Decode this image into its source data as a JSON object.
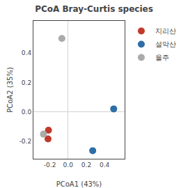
{
  "chart_data": {
    "type": "scatter",
    "title": "PCoA Bray-Curtis species",
    "xlabel": "PCoA1 (43%)",
    "ylabel": "PCoA2 (35%)",
    "xlim": [
      -0.38,
      0.62
    ],
    "ylim": [
      -0.32,
      0.62
    ],
    "xticks": [
      -0.2,
      {
        "value": 0.0,
        "label": "0.0"
      },
      0.2,
      0.4
    ],
    "yticks": [
      -0.2,
      {
        "value": 0.0,
        "label": "0.0"
      },
      0.2,
      0.4
    ],
    "grid": false,
    "legend": "right",
    "series": [
      {
        "name": "지리산",
        "color": "#C0392B",
        "x": [
          -0.215,
          -0.22
        ],
        "values": [
          -0.125,
          -0.185
        ]
      },
      {
        "name": "설악산",
        "color": "#2E6EA6",
        "x": [
          0.5,
          0.27
        ],
        "values": [
          0.02,
          -0.265
        ]
      },
      {
        "name": "울주",
        "color": "#AAAAAA",
        "x": [
          -0.068,
          -0.27
        ],
        "values": [
          0.5,
          -0.152
        ]
      }
    ]
  }
}
